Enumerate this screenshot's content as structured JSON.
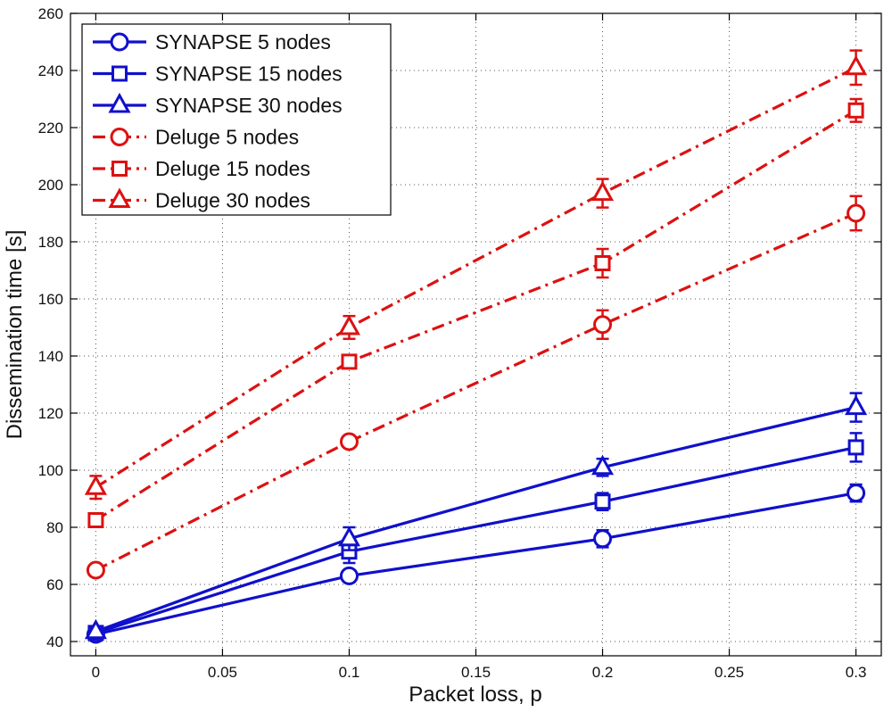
{
  "chart_data": {
    "type": "line",
    "title": "",
    "xlabel": "Packet loss, p",
    "ylabel": "Dissemination time [s]",
    "xlim": [
      -0.01,
      0.31
    ],
    "ylim": [
      35,
      260
    ],
    "xticks": [
      0,
      0.05,
      0.1,
      0.15,
      0.2,
      0.25,
      0.3
    ],
    "xtick_labels": [
      "0",
      "0.05",
      "0.1",
      "0.15",
      "0.2",
      "0.25",
      "0.3"
    ],
    "yticks": [
      40,
      60,
      80,
      100,
      120,
      140,
      160,
      180,
      200,
      220,
      240,
      260
    ],
    "ytick_labels": [
      "40",
      "60",
      "80",
      "100",
      "120",
      "140",
      "160",
      "180",
      "200",
      "220",
      "240",
      "260"
    ],
    "grid": true,
    "legend_position": "top-left",
    "x": [
      0,
      0.1,
      0.2,
      0.3
    ],
    "series": [
      {
        "name": "SYNAPSE 5 nodes",
        "marker": "circle",
        "style": "solid",
        "color": "#1010cc",
        "values": [
          42.5,
          63,
          76,
          92
        ],
        "errors": [
          1,
          1.5,
          3,
          3
        ]
      },
      {
        "name": "SYNAPSE 15 nodes",
        "marker": "square",
        "style": "solid",
        "color": "#1010cc",
        "values": [
          43,
          71.5,
          89,
          108
        ],
        "errors": [
          1,
          4,
          3,
          5
        ]
      },
      {
        "name": "SYNAPSE 30 nodes",
        "marker": "triangle",
        "style": "solid",
        "color": "#1010cc",
        "values": [
          43.5,
          76,
          101,
          122
        ],
        "errors": [
          1,
          4,
          3,
          5
        ]
      },
      {
        "name": "Deluge 5 nodes",
        "marker": "circle",
        "style": "dashdot",
        "color": "#dd1111",
        "values": [
          65,
          110,
          151,
          190
        ],
        "errors": [
          1,
          1,
          5,
          6
        ]
      },
      {
        "name": "Deluge 15 nodes",
        "marker": "square",
        "style": "dashdot",
        "color": "#dd1111",
        "values": [
          82.5,
          138,
          172.5,
          226
        ],
        "errors": [
          2,
          1.5,
          5,
          4
        ]
      },
      {
        "name": "Deluge 30 nodes",
        "marker": "triangle",
        "style": "dashdot",
        "color": "#dd1111",
        "values": [
          94,
          150,
          197,
          241
        ],
        "errors": [
          4,
          4,
          5,
          6
        ]
      }
    ]
  }
}
